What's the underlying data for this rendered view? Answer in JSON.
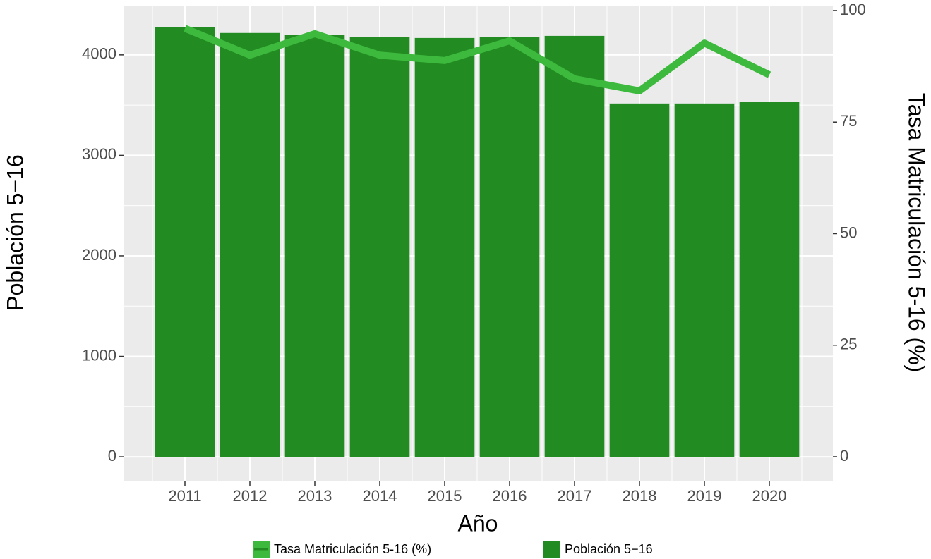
{
  "chart_data": {
    "type": "bar",
    "categories": [
      "2011",
      "2012",
      "2013",
      "2014",
      "2015",
      "2016",
      "2017",
      "2018",
      "2019",
      "2020"
    ],
    "series": [
      {
        "name": "Tasa Matriculación 5-16 (%)",
        "type": "line",
        "axis": "y2",
        "color": "#3dba3d",
        "values": [
          96.0,
          90.0,
          94.8,
          90.0,
          88.8,
          93.2,
          84.7,
          82.0,
          92.7,
          85.6
        ]
      },
      {
        "name": "Población 5−16",
        "type": "bar",
        "color": "#228b22",
        "values": [
          4274,
          4218,
          4196,
          4175,
          4168,
          4175,
          4189,
          3516,
          3516,
          3530
        ]
      }
    ],
    "xlabel": "Año",
    "ylabel": "Población 5−16",
    "y2label": "Tasa Matriculación 5-16 (%)",
    "ylim": [
      -245,
      4490
    ],
    "yticks": [
      0,
      1000,
      2000,
      3000,
      4000
    ],
    "y2lim": [
      -5.53,
      101.1
    ],
    "y2ticks": [
      0,
      25,
      50,
      75,
      100
    ],
    "grid": true,
    "legend": "bottom"
  }
}
